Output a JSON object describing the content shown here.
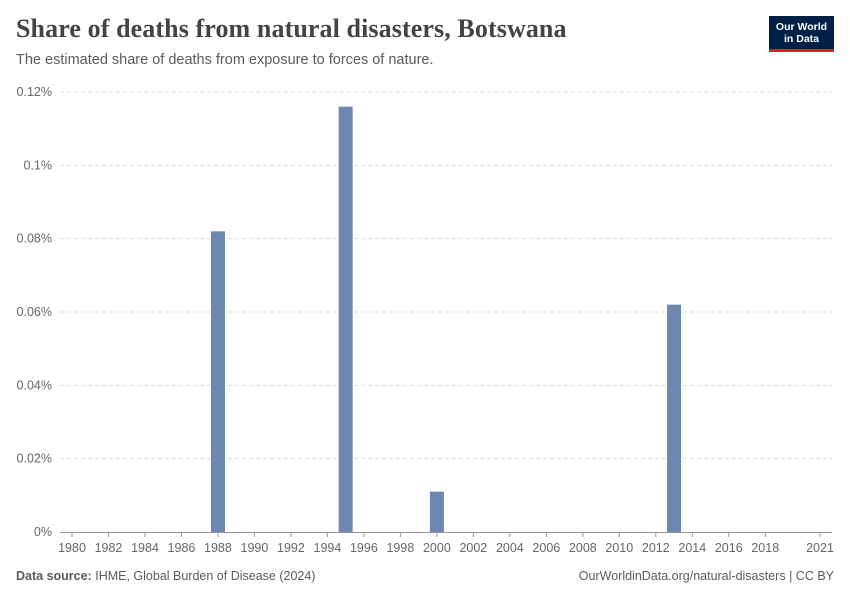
{
  "header": {
    "title": "Share of deaths from natural disasters, Botswana",
    "subtitle": "The estimated share of deaths from exposure to forces of nature."
  },
  "logo": {
    "line1": "Our World",
    "line2": "in Data"
  },
  "footer": {
    "source_label": "Data source:",
    "source_text": "IHME, Global Burden of Disease (2024)",
    "link": "OurWorldinData.org/natural-disasters | CC BY"
  },
  "colors": {
    "bar": "#6d87b0",
    "grid": "#dddddd",
    "axis": "#999999",
    "brand": "#002147",
    "accent": "#ce261e"
  },
  "chart_data": {
    "type": "bar",
    "title": "Share of deaths from natural disasters, Botswana",
    "xlabel": "",
    "ylabel": "",
    "ylim": [
      0,
      0.12
    ],
    "grid": true,
    "unit": "%",
    "y_ticks": [
      0,
      0.02,
      0.04,
      0.06,
      0.08,
      0.1,
      0.12
    ],
    "y_tick_labels": [
      "0%",
      "0.02%",
      "0.04%",
      "0.06%",
      "0.08%",
      "0.1%",
      "0.12%"
    ],
    "x_range": [
      1980,
      2021
    ],
    "x_tick_labels": [
      "1980",
      "1982",
      "1984",
      "1986",
      "1988",
      "1990",
      "1992",
      "1994",
      "1996",
      "1998",
      "2000",
      "2002",
      "2004",
      "2006",
      "2008",
      "2010",
      "2012",
      "2014",
      "2016",
      "2018",
      "2021"
    ],
    "x_tick_values": [
      1980,
      1982,
      1984,
      1986,
      1988,
      1990,
      1992,
      1994,
      1996,
      1998,
      2000,
      2002,
      2004,
      2006,
      2008,
      2010,
      2012,
      2014,
      2016,
      2018,
      2021
    ],
    "series": [
      {
        "name": "Botswana",
        "points": [
          {
            "year": 1988,
            "value": 0.082
          },
          {
            "year": 1995,
            "value": 0.116
          },
          {
            "year": 2000,
            "value": 0.011
          },
          {
            "year": 2013,
            "value": 0.062
          }
        ]
      }
    ]
  }
}
